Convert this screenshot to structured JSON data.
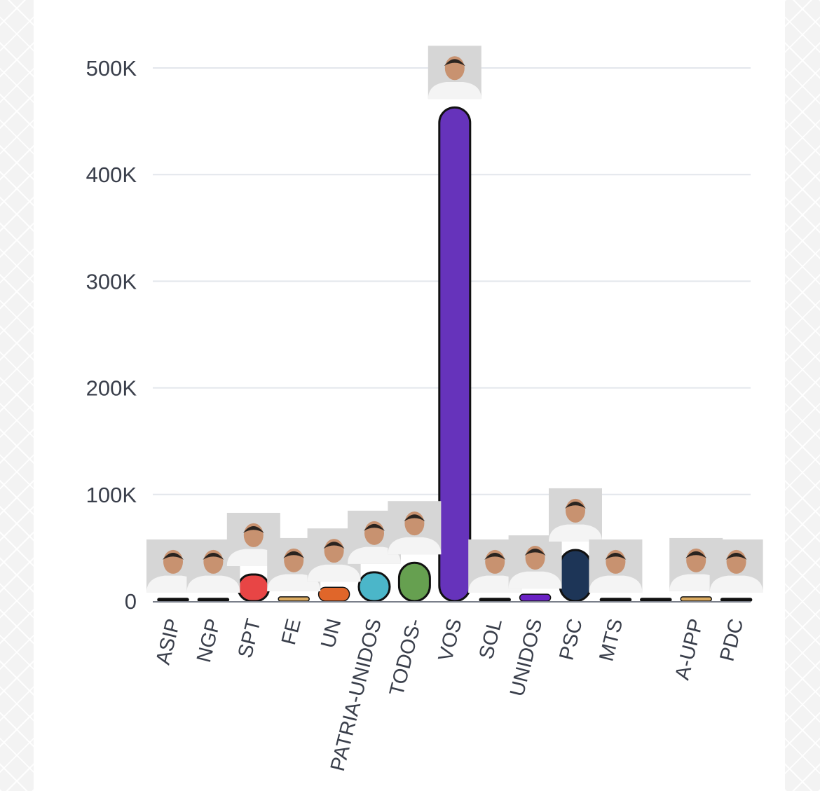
{
  "chart_data": {
    "type": "bar",
    "ylim": [
      0,
      500000
    ],
    "yticks": [
      {
        "value": 0,
        "label": "0"
      },
      {
        "value": 100000,
        "label": "100K"
      },
      {
        "value": 200000,
        "label": "200K"
      },
      {
        "value": 300000,
        "label": "300K"
      },
      {
        "value": 400000,
        "label": "400K"
      },
      {
        "value": 500000,
        "label": "500K"
      }
    ],
    "grid": true,
    "categories": [
      "ASIP",
      "NGP",
      "SPT",
      "FE",
      "UN",
      "PATRIA-UNIDOS",
      "TODOS-",
      "VOS",
      "SOL",
      "UNIDOS",
      "PSC",
      "MTS",
      "",
      "A-UPP",
      "PDC"
    ],
    "values": [
      1200,
      1000,
      25000,
      4000,
      13000,
      27000,
      36000,
      463000,
      1200,
      6500,
      48000,
      1200,
      500,
      4000,
      1500
    ],
    "colors": [
      "#111111",
      "#111111",
      "#e84545",
      "#d9a95f",
      "#e0662a",
      "#4bb6c9",
      "#66a050",
      "#6633bb",
      "#111111",
      "#6a22c4",
      "#1d3557",
      "#111111",
      "#111111",
      "#d9a95f",
      "#111111"
    ],
    "images": [
      "candidate-photo",
      "candidate-photo",
      "candidate-photo",
      "candidate-photo",
      "candidate-photo",
      "candidate-photo",
      "candidate-photo",
      "candidate-photo",
      "candidate-photo",
      "candidate-photo",
      "candidate-photo",
      "candidate-photo",
      "",
      "candidate-photo",
      "candidate-photo"
    ]
  }
}
